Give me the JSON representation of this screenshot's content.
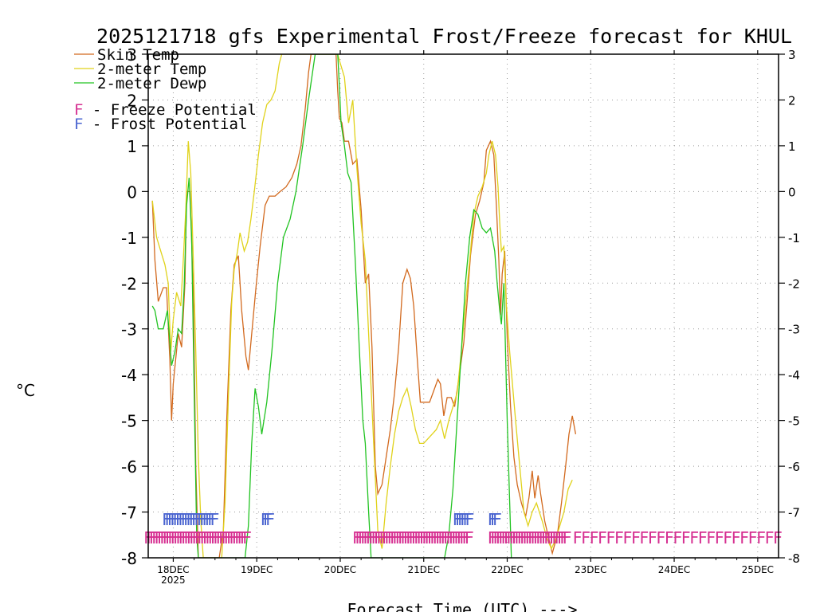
{
  "chart_data": {
    "type": "line",
    "title": "2025121718 gfs Experimental Frost/Freeze forecast for KHUL",
    "ylabel": "°C",
    "xlabel": "Forecast Time (UTC) --->",
    "ylim": [
      -8,
      3
    ],
    "xlim": [
      -0.3,
      7.25
    ],
    "yticks": [
      "-8",
      "-7",
      "-6",
      "-5",
      "-4",
      "-3",
      "-2",
      "-1",
      "0",
      "1",
      "2",
      "3"
    ],
    "xticks": [
      {
        "x": 0,
        "label": "18DEC",
        "sub": "2025"
      },
      {
        "x": 1,
        "label": "19DEC",
        "sub": ""
      },
      {
        "x": 2,
        "label": "20DEC",
        "sub": ""
      },
      {
        "x": 3,
        "label": "21DEC",
        "sub": ""
      },
      {
        "x": 4,
        "label": "22DEC",
        "sub": ""
      },
      {
        "x": 5,
        "label": "23DEC",
        "sub": ""
      },
      {
        "x": 6,
        "label": "24DEC",
        "sub": ""
      },
      {
        "x": 7,
        "label": "25DEC",
        "sub": ""
      }
    ],
    "legend": [
      {
        "label": "Skin Temp",
        "color": "#d2691e"
      },
      {
        "label": "2-meter Temp",
        "color": "#e0d21a"
      },
      {
        "label": "2-meter Dewp",
        "color": "#21c321"
      }
    ],
    "potential_legend": [
      {
        "letter": "F",
        "label": " - Freeze Potential",
        "color": "#d62f91"
      },
      {
        "letter": "F",
        "label": " - Frost Potential",
        "color": "#4a64d0"
      }
    ],
    "series": [
      {
        "name": "Skin Temp",
        "color": "#d2691e",
        "points": [
          [
            -0.25,
            -0.2
          ],
          [
            -0.22,
            -1.5
          ],
          [
            -0.18,
            -2.4
          ],
          [
            -0.12,
            -2.1
          ],
          [
            -0.08,
            -2.1
          ],
          [
            -0.04,
            -3.7
          ],
          [
            -0.02,
            -5.0
          ],
          [
            0.0,
            -4.2
          ],
          [
            0.06,
            -3.1
          ],
          [
            0.1,
            -3.4
          ],
          [
            0.14,
            -2.0
          ],
          [
            0.16,
            0.0
          ],
          [
            0.2,
            0.0
          ],
          [
            0.24,
            -2.2
          ],
          [
            0.27,
            -6.0
          ],
          [
            0.3,
            -8.0
          ],
          [
            0.55,
            -8.0
          ],
          [
            0.6,
            -7.4
          ],
          [
            0.64,
            -5.0
          ],
          [
            0.69,
            -2.6
          ],
          [
            0.73,
            -1.6
          ],
          [
            0.78,
            -1.4
          ],
          [
            0.82,
            -2.6
          ],
          [
            0.87,
            -3.6
          ],
          [
            0.9,
            -3.9
          ],
          [
            0.94,
            -3.1
          ],
          [
            0.99,
            -2.1
          ],
          [
            1.04,
            -1.2
          ],
          [
            1.1,
            -0.3
          ],
          [
            1.15,
            -0.1
          ],
          [
            1.22,
            -0.1
          ],
          [
            1.28,
            0.0
          ],
          [
            1.35,
            0.1
          ],
          [
            1.42,
            0.3
          ],
          [
            1.48,
            0.6
          ],
          [
            1.53,
            1.0
          ],
          [
            1.58,
            1.8
          ],
          [
            1.62,
            2.6
          ],
          [
            1.65,
            3.0
          ],
          [
            1.95,
            3.0
          ],
          [
            1.97,
            2.2
          ],
          [
            1.99,
            1.6
          ],
          [
            2.02,
            1.5
          ],
          [
            2.05,
            1.1
          ],
          [
            2.1,
            1.1
          ],
          [
            2.15,
            0.6
          ],
          [
            2.2,
            0.7
          ],
          [
            2.25,
            -0.4
          ],
          [
            2.3,
            -2.0
          ],
          [
            2.34,
            -1.8
          ],
          [
            2.38,
            -3.4
          ],
          [
            2.42,
            -6.0
          ],
          [
            2.45,
            -6.6
          ],
          [
            2.5,
            -6.4
          ],
          [
            2.55,
            -5.8
          ],
          [
            2.6,
            -5.2
          ],
          [
            2.65,
            -4.4
          ],
          [
            2.7,
            -3.4
          ],
          [
            2.75,
            -2.0
          ],
          [
            2.8,
            -1.7
          ],
          [
            2.84,
            -1.9
          ],
          [
            2.88,
            -2.5
          ],
          [
            2.92,
            -3.6
          ],
          [
            2.96,
            -4.6
          ],
          [
            3.02,
            -4.6
          ],
          [
            3.07,
            -4.6
          ],
          [
            3.13,
            -4.3
          ],
          [
            3.17,
            -4.1
          ],
          [
            3.2,
            -4.2
          ],
          [
            3.24,
            -4.9
          ],
          [
            3.28,
            -4.5
          ],
          [
            3.33,
            -4.5
          ],
          [
            3.37,
            -4.7
          ],
          [
            3.42,
            -4.1
          ],
          [
            3.48,
            -3.3
          ],
          [
            3.52,
            -2.4
          ],
          [
            3.56,
            -1.4
          ],
          [
            3.62,
            -0.5
          ],
          [
            3.67,
            -0.2
          ],
          [
            3.72,
            0.2
          ],
          [
            3.75,
            0.9
          ],
          [
            3.8,
            1.1
          ],
          [
            3.84,
            0.8
          ],
          [
            3.87,
            -0.3
          ],
          [
            3.9,
            -1.5
          ],
          [
            3.92,
            -2.7
          ],
          [
            3.94,
            -1.8
          ],
          [
            3.97,
            -1.3
          ],
          [
            4.0,
            -3.2
          ],
          [
            4.04,
            -4.7
          ],
          [
            4.08,
            -5.8
          ],
          [
            4.12,
            -6.4
          ],
          [
            4.17,
            -6.8
          ],
          [
            4.22,
            -7.1
          ],
          [
            4.26,
            -6.7
          ],
          [
            4.3,
            -6.1
          ],
          [
            4.33,
            -6.7
          ],
          [
            4.37,
            -6.2
          ],
          [
            4.4,
            -6.6
          ],
          [
            4.45,
            -7.2
          ],
          [
            4.5,
            -7.6
          ],
          [
            4.54,
            -7.9
          ],
          [
            4.6,
            -7.5
          ],
          [
            4.65,
            -6.8
          ],
          [
            4.7,
            -6.0
          ],
          [
            4.74,
            -5.3
          ],
          [
            4.78,
            -4.9
          ],
          [
            4.82,
            -5.3
          ]
        ]
      },
      {
        "name": "2-meter Temp",
        "color": "#e0d21a",
        "points": [
          [
            -0.25,
            -0.2
          ],
          [
            -0.2,
            -1.0
          ],
          [
            -0.15,
            -1.3
          ],
          [
            -0.1,
            -1.6
          ],
          [
            -0.06,
            -2.0
          ],
          [
            -0.03,
            -3.5
          ],
          [
            0.0,
            -2.8
          ],
          [
            0.04,
            -2.2
          ],
          [
            0.09,
            -2.5
          ],
          [
            0.12,
            -1.5
          ],
          [
            0.15,
            -0.4
          ],
          [
            0.18,
            1.1
          ],
          [
            0.21,
            0.4
          ],
          [
            0.24,
            -1.5
          ],
          [
            0.27,
            -3.5
          ],
          [
            0.3,
            -5.8
          ],
          [
            0.33,
            -7.2
          ],
          [
            0.36,
            -8.0
          ],
          [
            0.58,
            -8.0
          ],
          [
            0.62,
            -6.8
          ],
          [
            0.66,
            -4.5
          ],
          [
            0.7,
            -2.4
          ],
          [
            0.73,
            -1.7
          ],
          [
            0.77,
            -1.3
          ],
          [
            0.8,
            -0.9
          ],
          [
            0.85,
            -1.3
          ],
          [
            0.89,
            -1.1
          ],
          [
            0.93,
            -0.6
          ],
          [
            0.97,
            0.0
          ],
          [
            1.02,
            0.8
          ],
          [
            1.07,
            1.5
          ],
          [
            1.12,
            1.9
          ],
          [
            1.17,
            2.0
          ],
          [
            1.22,
            2.2
          ],
          [
            1.27,
            2.8
          ],
          [
            1.3,
            3.0
          ],
          [
            1.97,
            3.0
          ],
          [
            2.0,
            2.8
          ],
          [
            2.05,
            2.5
          ],
          [
            2.1,
            1.5
          ],
          [
            2.15,
            2.0
          ],
          [
            2.2,
            0.5
          ],
          [
            2.25,
            -0.7
          ],
          [
            2.3,
            -1.5
          ],
          [
            2.35,
            -3.5
          ],
          [
            2.4,
            -5.5
          ],
          [
            2.45,
            -7.4
          ],
          [
            2.5,
            -7.8
          ],
          [
            2.55,
            -6.8
          ],
          [
            2.6,
            -6.0
          ],
          [
            2.65,
            -5.3
          ],
          [
            2.7,
            -4.8
          ],
          [
            2.75,
            -4.5
          ],
          [
            2.8,
            -4.3
          ],
          [
            2.85,
            -4.7
          ],
          [
            2.9,
            -5.2
          ],
          [
            2.95,
            -5.5
          ],
          [
            3.0,
            -5.5
          ],
          [
            3.05,
            -5.4
          ],
          [
            3.1,
            -5.3
          ],
          [
            3.15,
            -5.2
          ],
          [
            3.2,
            -5.0
          ],
          [
            3.25,
            -5.4
          ],
          [
            3.3,
            -5.0
          ],
          [
            3.35,
            -4.7
          ],
          [
            3.4,
            -4.4
          ],
          [
            3.45,
            -3.5
          ],
          [
            3.5,
            -2.5
          ],
          [
            3.55,
            -1.5
          ],
          [
            3.6,
            -0.5
          ],
          [
            3.65,
            -0.1
          ],
          [
            3.7,
            0.1
          ],
          [
            3.75,
            0.4
          ],
          [
            3.78,
            0.8
          ],
          [
            3.82,
            1.1
          ],
          [
            3.86,
            0.8
          ],
          [
            3.89,
            0.1
          ],
          [
            3.91,
            -0.7
          ],
          [
            3.93,
            -1.3
          ],
          [
            3.96,
            -1.2
          ],
          [
            3.99,
            -2.5
          ],
          [
            4.03,
            -3.5
          ],
          [
            4.1,
            -5.0
          ],
          [
            4.15,
            -6.0
          ],
          [
            4.2,
            -7.0
          ],
          [
            4.25,
            -7.3
          ],
          [
            4.3,
            -7.0
          ],
          [
            4.35,
            -6.8
          ],
          [
            4.42,
            -7.2
          ],
          [
            4.48,
            -7.6
          ],
          [
            4.53,
            -7.8
          ],
          [
            4.58,
            -7.6
          ],
          [
            4.63,
            -7.3
          ],
          [
            4.68,
            -7.0
          ],
          [
            4.73,
            -6.5
          ],
          [
            4.78,
            -6.3
          ]
        ]
      },
      {
        "name": "2-meter Dewp",
        "color": "#21c321",
        "points": [
          [
            -0.25,
            -2.5
          ],
          [
            -0.22,
            -2.6
          ],
          [
            -0.18,
            -3.0
          ],
          [
            -0.12,
            -3.0
          ],
          [
            -0.07,
            -2.6
          ],
          [
            -0.04,
            -3.3
          ],
          [
            -0.02,
            -3.8
          ],
          [
            0.02,
            -3.5
          ],
          [
            0.06,
            -3.0
          ],
          [
            0.1,
            -3.1
          ],
          [
            0.13,
            -2.1
          ],
          [
            0.16,
            -0.3
          ],
          [
            0.19,
            0.3
          ],
          [
            0.22,
            -1.0
          ],
          [
            0.25,
            -4.3
          ],
          [
            0.28,
            -7.5
          ],
          [
            0.3,
            -8.0
          ],
          [
            0.86,
            -8.0
          ],
          [
            0.9,
            -7.3
          ],
          [
            0.94,
            -5.5
          ],
          [
            0.98,
            -4.3
          ],
          [
            1.02,
            -4.7
          ],
          [
            1.06,
            -5.3
          ],
          [
            1.12,
            -4.6
          ],
          [
            1.18,
            -3.5
          ],
          [
            1.25,
            -2.0
          ],
          [
            1.32,
            -1.0
          ],
          [
            1.4,
            -0.6
          ],
          [
            1.47,
            0.0
          ],
          [
            1.55,
            1.0
          ],
          [
            1.62,
            2.0
          ],
          [
            1.7,
            3.0
          ],
          [
            1.97,
            3.0
          ],
          [
            1.99,
            2.3
          ],
          [
            2.01,
            1.5
          ],
          [
            2.05,
            1.0
          ],
          [
            2.09,
            0.4
          ],
          [
            2.13,
            0.2
          ],
          [
            2.18,
            -1.5
          ],
          [
            2.23,
            -3.5
          ],
          [
            2.27,
            -5.0
          ],
          [
            2.3,
            -5.5
          ],
          [
            2.34,
            -7.0
          ],
          [
            2.37,
            -8.0
          ],
          [
            3.25,
            -8.0
          ],
          [
            3.3,
            -7.5
          ],
          [
            3.35,
            -6.5
          ],
          [
            3.4,
            -5.0
          ],
          [
            3.45,
            -3.5
          ],
          [
            3.5,
            -2.0
          ],
          [
            3.55,
            -1.0
          ],
          [
            3.6,
            -0.4
          ],
          [
            3.65,
            -0.5
          ],
          [
            3.7,
            -0.8
          ],
          [
            3.75,
            -0.9
          ],
          [
            3.8,
            -0.8
          ],
          [
            3.85,
            -1.3
          ],
          [
            3.88,
            -2.0
          ],
          [
            3.91,
            -2.6
          ],
          [
            3.93,
            -2.9
          ],
          [
            3.96,
            -2.0
          ],
          [
            4.0,
            -5.0
          ],
          [
            4.05,
            -8.0
          ]
        ]
      }
    ],
    "frost_potential": {
      "letter": "F",
      "color": "#4a64d0",
      "value": -7.15,
      "ranges": [
        [
          -0.08,
          0.52,
          0.032
        ],
        [
          1.1,
          1.18,
          0.03
        ],
        [
          3.4,
          3.57,
          0.03
        ],
        [
          3.82,
          3.88,
          0.03
        ]
      ]
    },
    "freeze_potential": {
      "letter": "F",
      "color": "#d62f91",
      "value": -7.55,
      "ranges": [
        [
          -0.3,
          0.9,
          0.032
        ],
        [
          2.2,
          3.57,
          0.032
        ],
        [
          3.82,
          4.72,
          0.032
        ],
        [
          4.84,
          7.25,
          0.1
        ]
      ]
    }
  }
}
